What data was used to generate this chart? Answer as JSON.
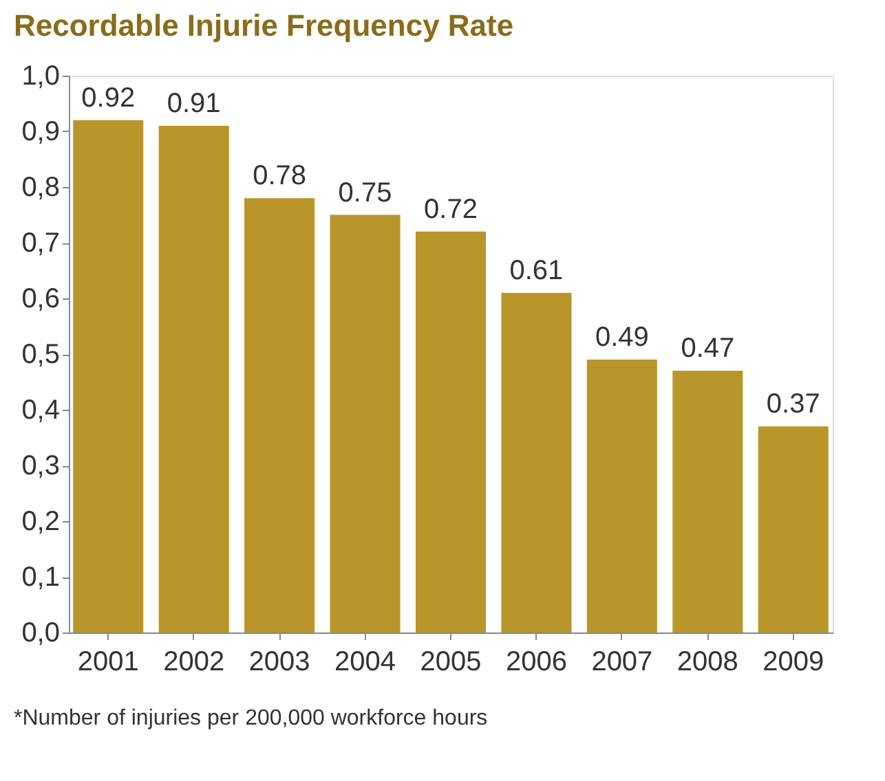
{
  "chart_data": {
    "type": "bar",
    "title": "Recordable Injurie Frequency Rate",
    "categories": [
      "2001",
      "2002",
      "2003",
      "2004",
      "2005",
      "2006",
      "2007",
      "2008",
      "2009"
    ],
    "values": [
      0.92,
      0.91,
      0.78,
      0.75,
      0.72,
      0.61,
      0.49,
      0.47,
      0.37
    ],
    "color": "#b8962a",
    "data_labels": true,
    "grid": false,
    "ylim": [
      0,
      1.0
    ],
    "yticks": [
      {
        "value": 0,
        "label": "0,0"
      },
      {
        "value": 0.1,
        "label": "0,1"
      },
      {
        "value": 0.2,
        "label": "0,2"
      },
      {
        "value": 0.3,
        "label": "0,3"
      },
      {
        "value": 0.4,
        "label": "0,4"
      },
      {
        "value": 0.5,
        "label": "0,5"
      },
      {
        "value": 0.6,
        "label": "0,6"
      },
      {
        "value": 0.7,
        "label": "0,7"
      },
      {
        "value": 0.8,
        "label": "0,8"
      },
      {
        "value": 0.9,
        "label": "0,9"
      },
      {
        "value": 1.0,
        "label": "1,0"
      }
    ],
    "annotations": [
      "*Number of injuries per 200,000 workforce hours"
    ]
  }
}
